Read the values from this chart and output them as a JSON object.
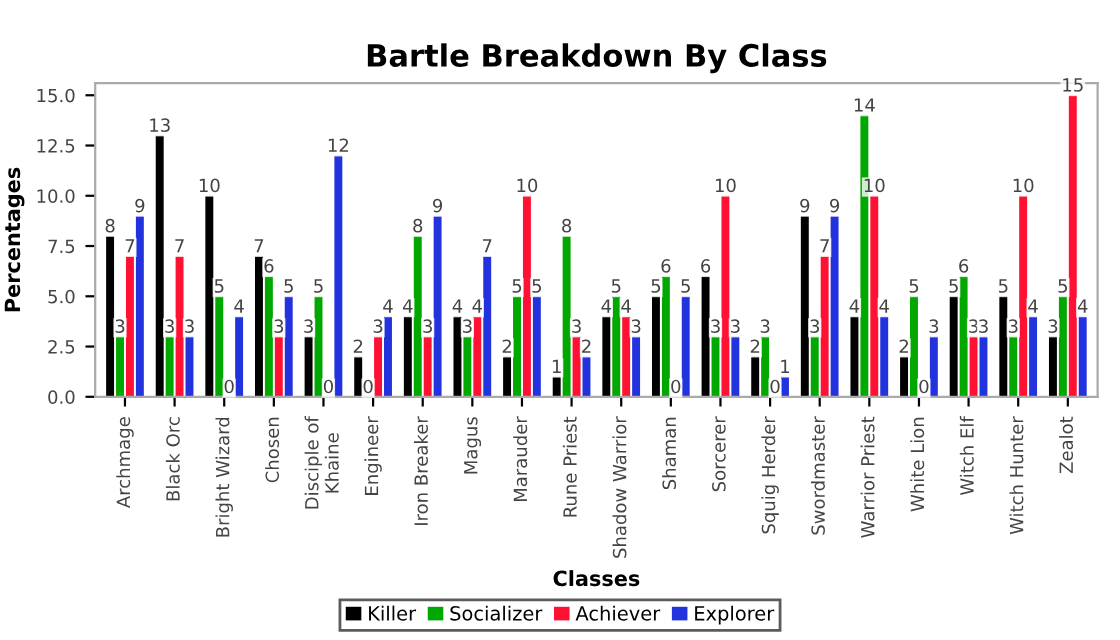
{
  "chart_data": {
    "type": "bar",
    "title": "Bartle Breakdown By Class",
    "xlabel": "Classes",
    "ylabel": "Percentages",
    "categories": [
      "Archmage",
      "Black Orc",
      "Bright Wizard",
      "Chosen",
      "Disciple of\nKhaine",
      "Engineer",
      "Iron Breaker",
      "Magus",
      "Marauder",
      "Rune Priest",
      "Shadow Warrior",
      "Shaman",
      "Sorcerer",
      "Squig Herder",
      "Swordmaster",
      "Warrior Priest",
      "White Lion",
      "Witch Elf",
      "Witch Hunter",
      "Zealot"
    ],
    "series": [
      {
        "name": "Killer",
        "color": "#000000",
        "values": [
          8,
          13,
          10,
          7,
          3,
          2,
          4,
          4,
          2,
          1,
          4,
          5,
          6,
          2,
          9,
          4,
          2,
          5,
          5,
          3
        ]
      },
      {
        "name": "Socializer",
        "color": "#00a800",
        "values": [
          3,
          3,
          5,
          6,
          5,
          0,
          8,
          3,
          5,
          8,
          5,
          6,
          3,
          3,
          3,
          14,
          5,
          6,
          3,
          5
        ]
      },
      {
        "name": "Achiever",
        "color": "#ff1133",
        "values": [
          7,
          7,
          0,
          3,
          0,
          3,
          3,
          4,
          10,
          3,
          4,
          0,
          10,
          0,
          7,
          10,
          0,
          3,
          10,
          15
        ]
      },
      {
        "name": "Explorer",
        "color": "#2233dd",
        "values": [
          9,
          3,
          4,
          5,
          12,
          4,
          9,
          7,
          5,
          2,
          3,
          5,
          3,
          1,
          9,
          4,
          3,
          3,
          4,
          4
        ]
      }
    ],
    "ylim": [
      0,
      15.6
    ],
    "yticks": [
      {
        "value": 0,
        "label": "0.0"
      },
      {
        "value": 2.5,
        "label": "2.5"
      },
      {
        "value": 5,
        "label": "5.0"
      },
      {
        "value": 7.5,
        "label": "7.5"
      },
      {
        "value": 10,
        "label": "10.0"
      },
      {
        "value": 12.5,
        "label": "12.5"
      },
      {
        "value": 15,
        "label": "15.0"
      }
    ],
    "data_labels": true,
    "grid": false,
    "legend": "bottom"
  }
}
